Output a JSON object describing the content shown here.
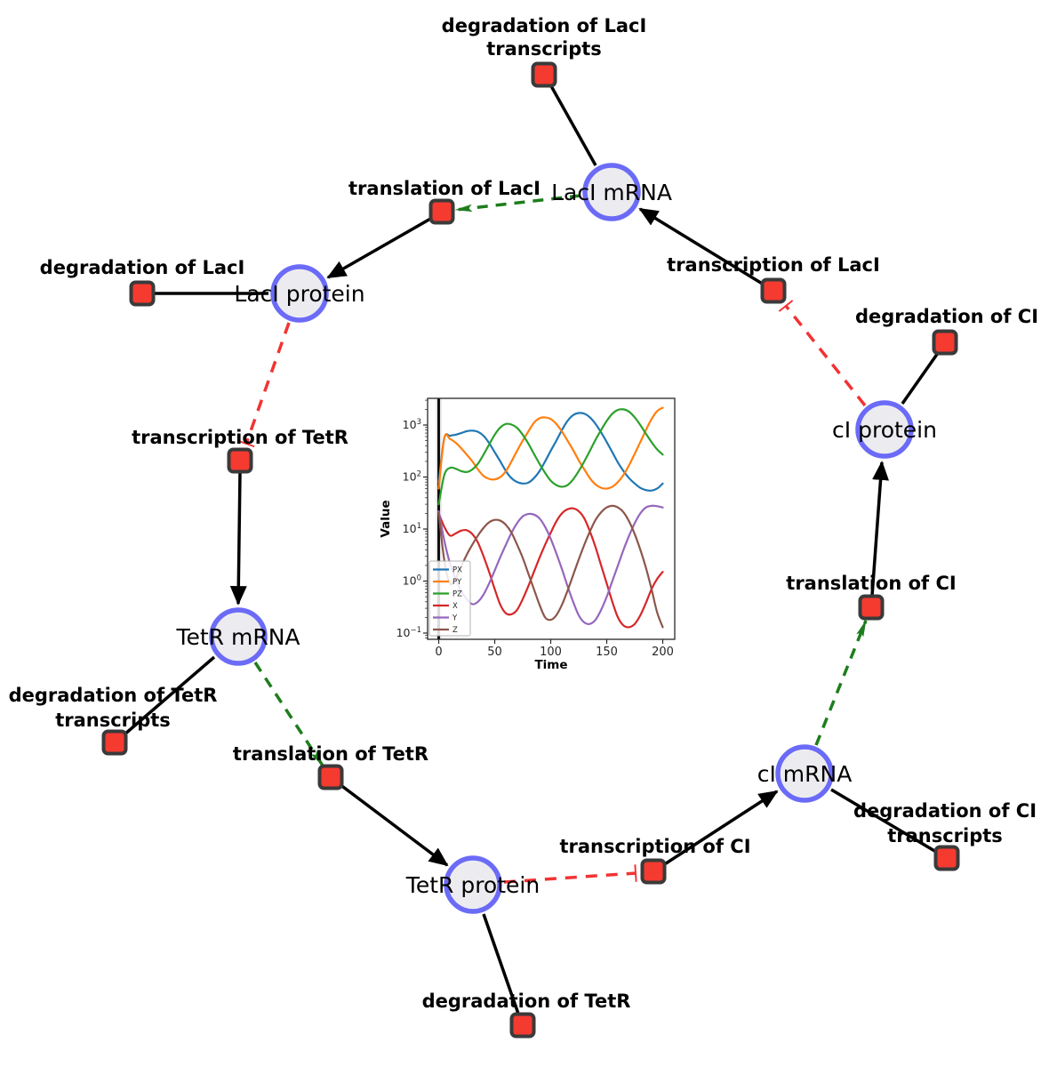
{
  "diagram": {
    "colors": {
      "node-fill": "#ececf0",
      "node-border": "#6b6bf7",
      "square-fill": "#f53a30",
      "square-border": "#3a3a3a",
      "edge-black": "#000000",
      "edge-green": "#1d7d1d",
      "edge-red": "#f23333"
    },
    "species": [
      {
        "label": "LacI mRNA"
      },
      {
        "label": "LacI protein"
      },
      {
        "label": "TetR mRNA"
      },
      {
        "label": "TetR protein"
      },
      {
        "label": "cI mRNA"
      },
      {
        "label": "cI protein"
      }
    ],
    "reactions": [
      {
        "lines": [
          "degradation of LacI",
          "transcripts"
        ]
      },
      {
        "lines": [
          "translation of LacI"
        ]
      },
      {
        "lines": [
          "degradation of LacI"
        ]
      },
      {
        "lines": [
          "transcription of LacI"
        ]
      },
      {
        "lines": [
          "degradation of CI"
        ]
      },
      {
        "lines": [
          "transcription of TetR"
        ]
      },
      {
        "lines": [
          "degradation of TetR",
          "transcripts"
        ]
      },
      {
        "lines": [
          "translation of TetR"
        ]
      },
      {
        "lines": [
          "degradation of TetR"
        ]
      },
      {
        "lines": [
          "transcription of CI"
        ]
      },
      {
        "lines": [
          "degradation of CI",
          "transcripts"
        ]
      },
      {
        "lines": [
          "translation of CI"
        ]
      }
    ],
    "edges": [
      {
        "from": "degradation of LacI transcripts",
        "to": "LacI mRNA",
        "type": "plain-line"
      },
      {
        "from": "LacI mRNA",
        "to": "translation of LacI",
        "type": "modifier-arrow-green-dashed"
      },
      {
        "from": "translation of LacI",
        "to": "LacI protein",
        "type": "product-arrow"
      },
      {
        "from": "LacI protein",
        "to": "degradation of LacI",
        "type": "plain-line"
      },
      {
        "from": "LacI protein",
        "to": "transcription of TetR",
        "type": "inhibition-red-dashed"
      },
      {
        "from": "transcription of TetR",
        "to": "TetR mRNA",
        "type": "product-arrow"
      },
      {
        "from": "TetR mRNA",
        "to": "degradation of TetR transcripts",
        "type": "plain-line"
      },
      {
        "from": "TetR mRNA",
        "to": "translation of TetR",
        "type": "modifier-arrow-green-dashed"
      },
      {
        "from": "translation of TetR",
        "to": "TetR protein",
        "type": "product-arrow"
      },
      {
        "from": "TetR protein",
        "to": "degradation of TetR",
        "type": "plain-line"
      },
      {
        "from": "TetR protein",
        "to": "transcription of CI",
        "type": "inhibition-red-dashed"
      },
      {
        "from": "transcription of CI",
        "to": "cI mRNA",
        "type": "product-arrow"
      },
      {
        "from": "cI mRNA",
        "to": "degradation of CI transcripts",
        "type": "plain-line"
      },
      {
        "from": "cI mRNA",
        "to": "translation of CI",
        "type": "modifier-arrow-green-dashed"
      },
      {
        "from": "translation of CI",
        "to": "cI protein",
        "type": "product-arrow"
      },
      {
        "from": "cI protein",
        "to": "degradation of CI",
        "type": "plain-line"
      },
      {
        "from": "cI protein",
        "to": "transcription of LacI",
        "type": "inhibition-red-dashed"
      }
    ]
  },
  "chart_data": {
    "type": "line",
    "title": "",
    "xlabel": "Time",
    "ylabel": "Value",
    "x_ticks": [
      0,
      50,
      100,
      150,
      200
    ],
    "xlim": [
      -10,
      210
    ],
    "y_scale": "log",
    "y_tick_exponents": [
      3,
      2,
      1,
      0,
      -1
    ],
    "ylim_log10": [
      -1.12,
      3.51
    ],
    "grid": false,
    "legend_position": "lower left",
    "vline_x": 0,
    "shaded_band_x": [
      -2.5,
      2.5
    ],
    "x": [
      0,
      5,
      10,
      15,
      20,
      25,
      30,
      35,
      40,
      45,
      50,
      55,
      60,
      65,
      70,
      75,
      80,
      85,
      90,
      95,
      100,
      105,
      110,
      115,
      120,
      125,
      130,
      135,
      140,
      145,
      150,
      155,
      160,
      165,
      170,
      175,
      180,
      185,
      190,
      195,
      200
    ],
    "series": [
      {
        "name": "PX",
        "color": "#1f77b4",
        "values": [
          80,
          560,
          620,
          650,
          700,
          760,
          780,
          740,
          620,
          450,
          300,
          200,
          130,
          95,
          80,
          75,
          78,
          95,
          130,
          200,
          320,
          500,
          800,
          1200,
          1550,
          1700,
          1650,
          1400,
          1050,
          720,
          470,
          300,
          190,
          130,
          95,
          75,
          62,
          56,
          55,
          60,
          75
        ]
      },
      {
        "name": "PY",
        "color": "#ff7f0e",
        "values": [
          60,
          570,
          540,
          460,
          360,
          270,
          200,
          140,
          105,
          92,
          90,
          100,
          130,
          200,
          320,
          500,
          750,
          1100,
          1350,
          1400,
          1300,
          1050,
          750,
          500,
          330,
          210,
          140,
          95,
          72,
          62,
          60,
          65,
          80,
          110,
          170,
          280,
          470,
          800,
          1300,
          1850,
          2150
        ]
      },
      {
        "name": "PZ",
        "color": "#2ca02c",
        "values": [
          30,
          110,
          150,
          145,
          130,
          125,
          140,
          180,
          270,
          420,
          650,
          900,
          1050,
          1020,
          880,
          650,
          440,
          280,
          180,
          120,
          85,
          70,
          65,
          70,
          90,
          130,
          200,
          320,
          520,
          800,
          1200,
          1650,
          1950,
          2000,
          1800,
          1400,
          1000,
          680,
          470,
          340,
          270
        ]
      },
      {
        "name": "X",
        "color": "#d62728",
        "values": [
          20,
          11,
          7.5,
          8.2,
          9.3,
          9.5,
          8,
          5.5,
          3,
          1.5,
          0.7,
          0.35,
          0.24,
          0.23,
          0.28,
          0.45,
          0.8,
          1.5,
          2.8,
          5,
          8.5,
          14,
          20,
          24,
          25,
          22,
          16,
          9,
          4.5,
          2,
          0.9,
          0.4,
          0.2,
          0.14,
          0.13,
          0.15,
          0.22,
          0.38,
          0.7,
          1.1,
          1.5
        ]
      },
      {
        "name": "Y",
        "color": "#9467bd",
        "values": [
          22,
          6,
          2.2,
          1.1,
          0.65,
          0.45,
          0.36,
          0.4,
          0.55,
          0.9,
          1.6,
          2.9,
          5,
          8.5,
          13,
          17.5,
          19.5,
          19,
          16,
          11,
          6.5,
          3.4,
          1.7,
          0.8,
          0.4,
          0.22,
          0.16,
          0.15,
          0.18,
          0.28,
          0.5,
          1,
          2,
          4,
          7.5,
          13,
          20,
          26,
          28,
          27.5,
          26
        ]
      },
      {
        "name": "Z",
        "color": "#8c564b",
        "values": [
          20,
          2.5,
          0.9,
          1.1,
          1.9,
          3.2,
          5,
          7.5,
          10.5,
          13.5,
          15,
          14.5,
          12,
          8.5,
          5,
          2.8,
          1.4,
          0.7,
          0.35,
          0.2,
          0.18,
          0.22,
          0.35,
          0.65,
          1.3,
          2.6,
          5,
          9,
          15,
          21,
          26,
          28,
          26,
          21,
          14,
          8,
          4,
          1.8,
          0.7,
          0.25,
          0.13
        ]
      }
    ]
  }
}
